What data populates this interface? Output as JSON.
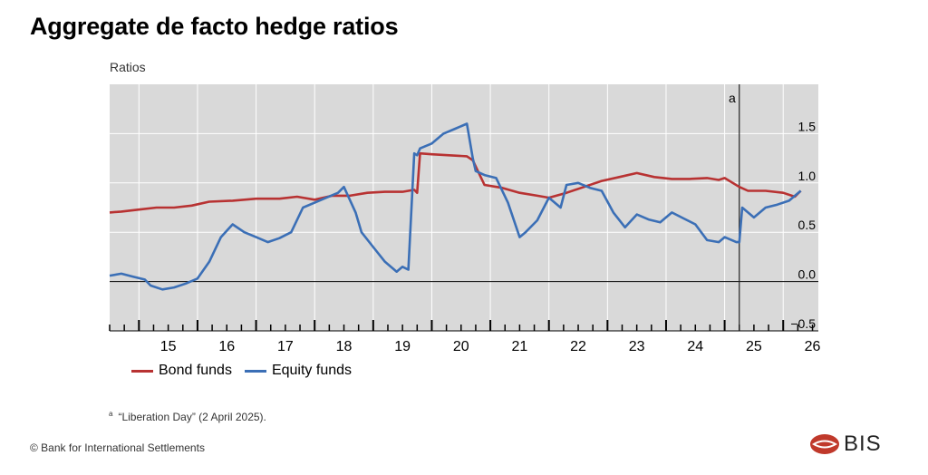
{
  "title": "Aggregate de facto hedge ratios",
  "footnote": {
    "marker": "a",
    "text": "“Liberation Day” (2 April 2025)."
  },
  "copyright": "© Bank for International Settlements",
  "logo_text": "BIS",
  "colors": {
    "bond": "#b83232",
    "equity": "#3b6fb6",
    "plot_bg": "#d9d9d9",
    "grid": "#ffffff"
  },
  "chart_data": {
    "type": "line",
    "ylabel": "Ratios",
    "ylim": [
      -0.5,
      2.0
    ],
    "yticks": [
      -0.5,
      0.0,
      0.5,
      1.0,
      1.5
    ],
    "ytick_labels": [
      "−0.5",
      "0.0",
      "0.5",
      "1.0",
      "1.5"
    ],
    "xlim": [
      2014.5,
      2026.6
    ],
    "xtick_labels": [
      "15",
      "16",
      "17",
      "18",
      "19",
      "20",
      "21",
      "22",
      "23",
      "24",
      "25",
      "26"
    ],
    "annotation": {
      "label": "a",
      "x": 2025.25
    },
    "series": [
      {
        "name": "Bond funds",
        "x": [
          2014.5,
          2014.7,
          2015.0,
          2015.3,
          2015.6,
          2015.9,
          2016.2,
          2016.6,
          2017.0,
          2017.4,
          2017.7,
          2018.0,
          2018.3,
          2018.6,
          2018.9,
          2019.2,
          2019.5,
          2019.7,
          2019.75,
          2019.8,
          2020.0,
          2020.3,
          2020.6,
          2020.7,
          2020.9,
          2021.2,
          2021.5,
          2021.8,
          2022.0,
          2022.3,
          2022.6,
          2022.9,
          2023.2,
          2023.5,
          2023.8,
          2024.1,
          2024.4,
          2024.7,
          2024.9,
          2025.0,
          2025.25,
          2025.4,
          2025.7,
          2026.0,
          2026.2,
          2026.3
        ],
        "values": [
          0.7,
          0.71,
          0.73,
          0.75,
          0.75,
          0.77,
          0.81,
          0.82,
          0.84,
          0.84,
          0.86,
          0.83,
          0.87,
          0.87,
          0.9,
          0.91,
          0.91,
          0.93,
          0.9,
          1.3,
          1.29,
          1.28,
          1.27,
          1.23,
          0.98,
          0.95,
          0.9,
          0.87,
          0.85,
          0.9,
          0.96,
          1.02,
          1.06,
          1.1,
          1.06,
          1.04,
          1.04,
          1.05,
          1.03,
          1.05,
          0.96,
          0.92,
          0.92,
          0.9,
          0.86,
          0.92
        ]
      },
      {
        "name": "Equity funds",
        "x": [
          2014.5,
          2014.7,
          2014.9,
          2015.1,
          2015.2,
          2015.4,
          2015.6,
          2015.8,
          2016.0,
          2016.2,
          2016.4,
          2016.6,
          2016.8,
          2017.0,
          2017.2,
          2017.4,
          2017.6,
          2017.8,
          2018.0,
          2018.2,
          2018.4,
          2018.5,
          2018.7,
          2018.8,
          2019.0,
          2019.2,
          2019.4,
          2019.5,
          2019.6,
          2019.7,
          2019.75,
          2019.8,
          2020.0,
          2020.2,
          2020.4,
          2020.6,
          2020.7,
          2020.75,
          2020.9,
          2021.1,
          2021.3,
          2021.5,
          2021.6,
          2021.8,
          2022.0,
          2022.2,
          2022.3,
          2022.5,
          2022.7,
          2022.9,
          2023.1,
          2023.3,
          2023.5,
          2023.7,
          2023.9,
          2024.1,
          2024.3,
          2024.5,
          2024.7,
          2024.9,
          2025.0,
          2025.2,
          2025.25,
          2025.3,
          2025.5,
          2025.7,
          2025.9,
          2026.1,
          2026.3
        ],
        "values": [
          0.06,
          0.08,
          0.05,
          0.02,
          -0.04,
          -0.08,
          -0.06,
          -0.02,
          0.03,
          0.2,
          0.45,
          0.58,
          0.5,
          0.45,
          0.4,
          0.44,
          0.5,
          0.75,
          0.8,
          0.85,
          0.9,
          0.96,
          0.7,
          0.5,
          0.35,
          0.2,
          0.1,
          0.15,
          0.12,
          1.3,
          1.28,
          1.35,
          1.4,
          1.5,
          1.55,
          1.6,
          1.25,
          1.12,
          1.08,
          1.05,
          0.8,
          0.45,
          0.5,
          0.62,
          0.85,
          0.75,
          0.98,
          1.0,
          0.95,
          0.92,
          0.7,
          0.55,
          0.68,
          0.63,
          0.6,
          0.7,
          0.64,
          0.58,
          0.42,
          0.4,
          0.45,
          0.4,
          0.4,
          0.75,
          0.65,
          0.75,
          0.78,
          0.82,
          0.92
        ]
      }
    ]
  }
}
